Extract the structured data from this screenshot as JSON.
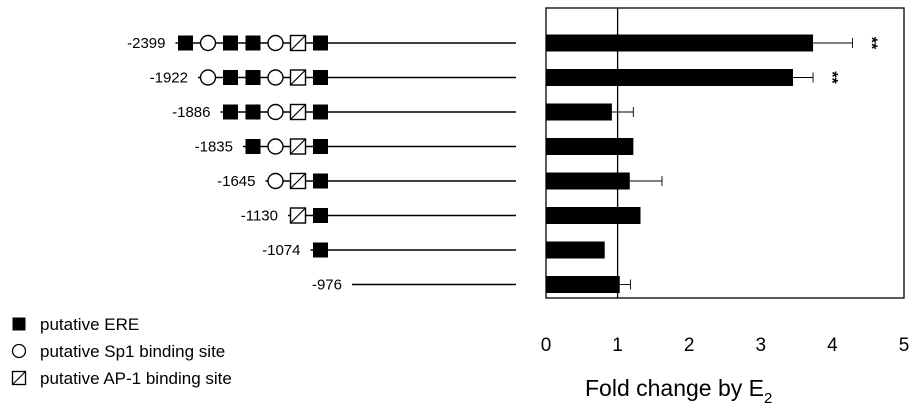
{
  "chart_data": {
    "type": "bar",
    "orientation": "horizontal",
    "xlabel_main": "Fold change by E",
    "xlabel_sub": "2",
    "xlim": [
      0,
      5
    ],
    "xticks": [
      "0",
      "1",
      "2",
      "3",
      "4",
      "5"
    ],
    "reference_line": 1,
    "constructs": [
      {
        "label": "-2399",
        "elements": [
          "ERE",
          "Sp1",
          "ERE",
          "ERE",
          "Sp1",
          "AP-1",
          "ERE"
        ],
        "value": 3.73,
        "error": 0.55,
        "significance": "**"
      },
      {
        "label": "-1922",
        "elements": [
          "Sp1",
          "ERE",
          "ERE",
          "Sp1",
          "AP-1",
          "ERE"
        ],
        "value": 3.45,
        "error": 0.28,
        "significance": "**"
      },
      {
        "label": "-1886",
        "elements": [
          "ERE",
          "ERE",
          "Sp1",
          "AP-1",
          "ERE"
        ],
        "value": 0.92,
        "error": 0.3,
        "significance": ""
      },
      {
        "label": "-1835",
        "elements": [
          "ERE",
          "Sp1",
          "AP-1",
          "ERE"
        ],
        "value": 1.22,
        "error": 0,
        "significance": ""
      },
      {
        "label": "-1645",
        "elements": [
          "Sp1",
          "AP-1",
          "ERE"
        ],
        "value": 1.17,
        "error": 0.45,
        "significance": ""
      },
      {
        "label": "-1130",
        "elements": [
          "AP-1",
          "ERE"
        ],
        "value": 1.32,
        "error": 0,
        "significance": ""
      },
      {
        "label": "-1074",
        "elements": [
          "ERE"
        ],
        "value": 0.82,
        "error": 0,
        "significance": ""
      },
      {
        "label": "-976",
        "elements": [],
        "value": 1.03,
        "error": 0.15,
        "significance": ""
      }
    ],
    "legend": [
      {
        "symbol": "ERE",
        "label": "putative ERE"
      },
      {
        "symbol": "Sp1",
        "label": "putative Sp1 binding site"
      },
      {
        "symbol": "AP-1",
        "label": "putative AP-1 binding site"
      }
    ]
  }
}
